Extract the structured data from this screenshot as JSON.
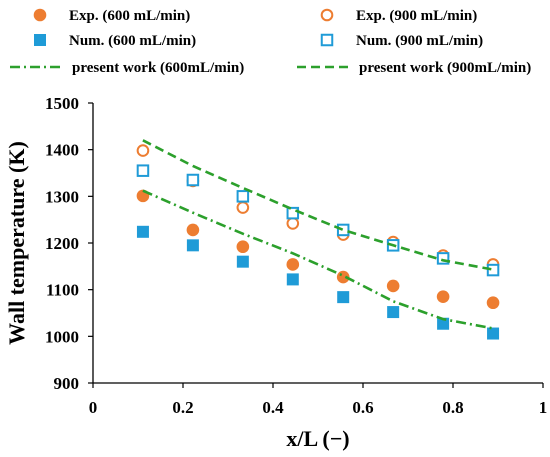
{
  "chart_data": {
    "type": "scatter",
    "xlabel": "x/L (−)",
    "ylabel": "Wall temperature (K)",
    "xlim": [
      0,
      1
    ],
    "ylim": [
      900,
      1500
    ],
    "xticks": [
      0,
      0.2,
      0.4,
      0.6,
      0.8,
      1
    ],
    "xtick_labels": [
      "0",
      "0.2",
      "0.4",
      "0.6",
      "0.8",
      "1"
    ],
    "yticks": [
      900,
      1000,
      1100,
      1200,
      1300,
      1400,
      1500
    ],
    "ytick_labels": [
      "900",
      "1000",
      "1100",
      "1200",
      "1300",
      "1400",
      "1500"
    ],
    "grid": false,
    "legend_position": "top",
    "series": [
      {
        "name": "Exp. (600 mL/min)",
        "kind": "marker",
        "marker": "circle-filled",
        "color": "#ED7D31",
        "x": [
          0.111,
          0.222,
          0.333,
          0.444,
          0.556,
          0.667,
          0.778,
          0.889
        ],
        "y": [
          1301,
          1228,
          1192,
          1154,
          1127,
          1108,
          1085,
          1072
        ]
      },
      {
        "name": "Exp. (900 mL/min)",
        "kind": "marker",
        "marker": "circle-open",
        "color": "#ED7D31",
        "x": [
          0.111,
          0.222,
          0.333,
          0.444,
          0.556,
          0.667,
          0.778,
          0.889
        ],
        "y": [
          1398,
          1333,
          1276,
          1242,
          1218,
          1202,
          1173,
          1154
        ]
      },
      {
        "name": "Num. (600 mL/min)",
        "kind": "marker",
        "marker": "square-filled",
        "color": "#1F9BD7",
        "x": [
          0.111,
          0.222,
          0.333,
          0.444,
          0.556,
          0.667,
          0.778,
          0.889
        ],
        "y": [
          1224,
          1195,
          1160,
          1122,
          1084,
          1052,
          1027,
          1006
        ]
      },
      {
        "name": "Num. (900 mL/min)",
        "kind": "marker",
        "marker": "square-open",
        "color": "#1F9BD7",
        "x": [
          0.111,
          0.222,
          0.333,
          0.444,
          0.556,
          0.667,
          0.778,
          0.889
        ],
        "y": [
          1355,
          1335,
          1300,
          1264,
          1228,
          1195,
          1167,
          1142
        ]
      },
      {
        "name": "present work (600mL/min)",
        "kind": "line",
        "dash": "dash-dot",
        "color": "#2CA02C",
        "x": [
          0.111,
          0.222,
          0.333,
          0.444,
          0.556,
          0.667,
          0.778,
          0.889
        ],
        "y": [
          1312,
          1265,
          1220,
          1178,
          1130,
          1075,
          1037,
          1017
        ]
      },
      {
        "name": "present work (900mL/min)",
        "kind": "line",
        "dash": "dashed",
        "color": "#2CA02C",
        "x": [
          0.111,
          0.222,
          0.333,
          0.444,
          0.556,
          0.667,
          0.778,
          0.889
        ],
        "y": [
          1420,
          1365,
          1318,
          1272,
          1228,
          1195,
          1163,
          1143
        ]
      }
    ]
  }
}
